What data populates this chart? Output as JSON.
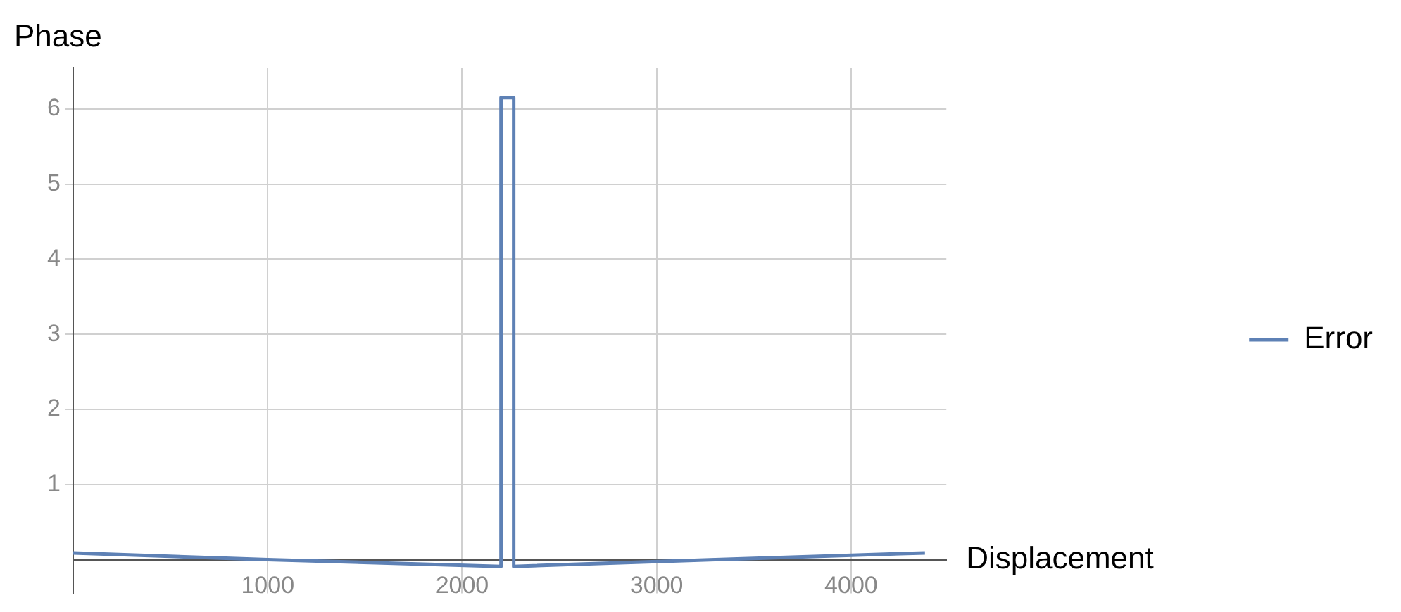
{
  "chart_data": {
    "type": "line",
    "xlabel": "Displacement",
    "ylabel": "Phase",
    "x": [
      0,
      1000,
      2200,
      2200,
      2265,
      2265,
      3300,
      4380
    ],
    "series": [
      {
        "name": "Error",
        "color": "#5e81b5",
        "values": [
          0.09,
          0,
          -0.09,
          6.15,
          6.15,
          -0.09,
          0,
          0.09
        ]
      }
    ],
    "xlim": [
      0,
      4490
    ],
    "ylim": [
      -0.45,
      6.55
    ],
    "xticks": [
      1000,
      2000,
      3000,
      4000
    ],
    "yticks": [
      1,
      2,
      3,
      4,
      5,
      6
    ],
    "grid": true,
    "legend": "right",
    "marker": "none",
    "line_style": "solid"
  }
}
